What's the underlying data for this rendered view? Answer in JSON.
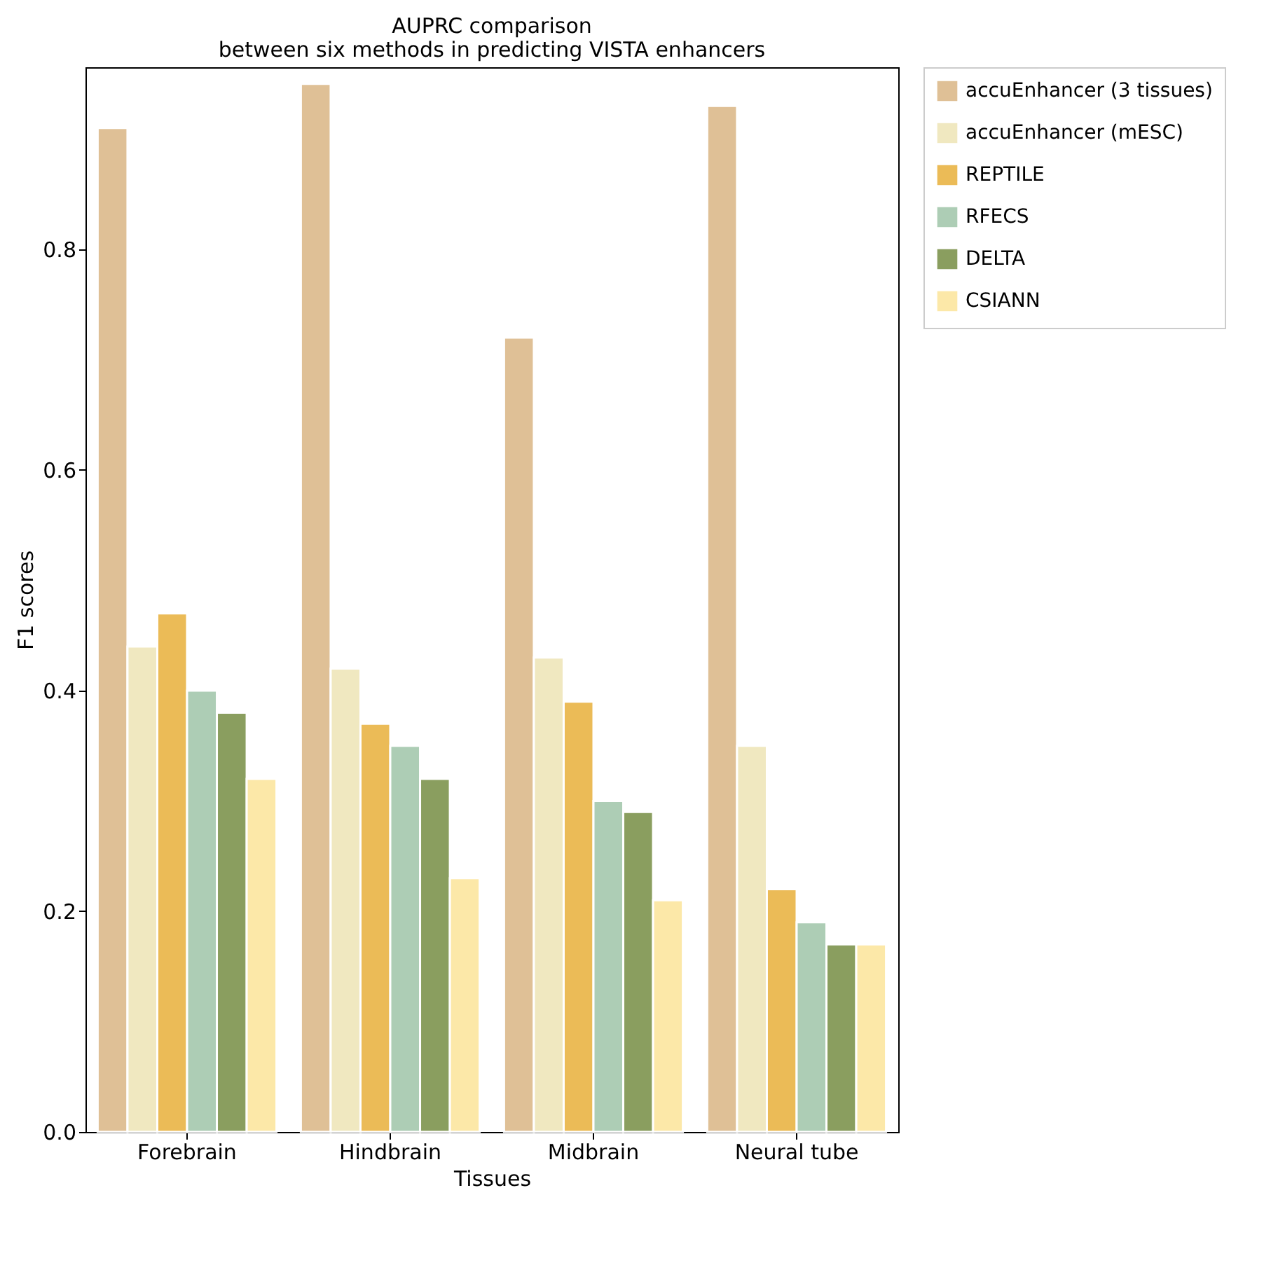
{
  "chart_data": {
    "type": "bar",
    "title": "AUPRC comparison\nbetween six methods in predicting VISTA enhancers",
    "xlabel": "Tissues",
    "ylabel": "F1 scores",
    "categories": [
      "Forebrain",
      "Hindbrain",
      "Midbrain",
      "Neural tube"
    ],
    "series": [
      {
        "name": "accuEnhancer (3 tissues)",
        "color": "#dfc096",
        "values": [
          0.91,
          0.95,
          0.72,
          0.93
        ]
      },
      {
        "name": "accuEnhancer (mESC)",
        "color": "#f0e8c0",
        "values": [
          0.44,
          0.42,
          0.43,
          0.35
        ]
      },
      {
        "name": "REPTILE",
        "color": "#ebbb57",
        "values": [
          0.47,
          0.37,
          0.39,
          0.22
        ]
      },
      {
        "name": "RFECS",
        "color": "#adcdb5",
        "values": [
          0.4,
          0.35,
          0.3,
          0.19
        ]
      },
      {
        "name": "DELTA",
        "color": "#8a9e5f",
        "values": [
          0.38,
          0.32,
          0.29,
          0.17
        ]
      },
      {
        "name": "CSIANN",
        "color": "#fce8a8",
        "values": [
          0.32,
          0.23,
          0.21,
          0.17
        ]
      }
    ],
    "ylim": [
      0,
      0.965
    ],
    "yticks": [
      {
        "value": 0,
        "label": "0.0"
      },
      {
        "value": 0.2,
        "label": "0.2"
      },
      {
        "value": 0.4,
        "label": "0.4"
      },
      {
        "value": 0.6,
        "label": "0.6"
      },
      {
        "value": 0.8,
        "label": "0.8"
      }
    ],
    "grid": false,
    "legend": "right"
  }
}
